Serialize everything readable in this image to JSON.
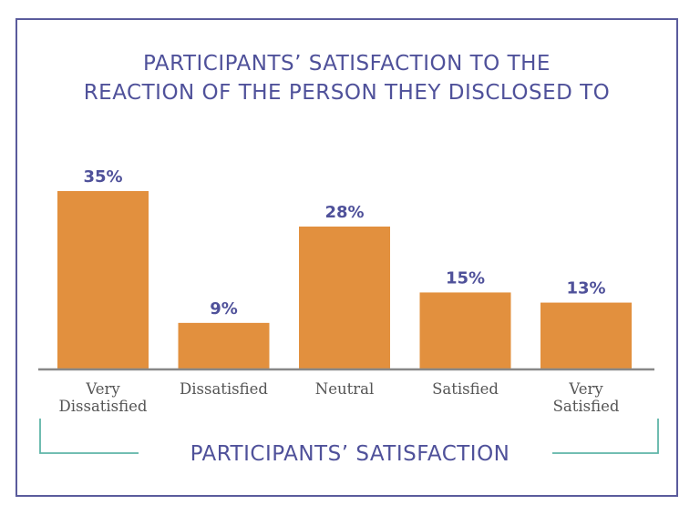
{
  "chart_data": {
    "type": "bar",
    "title_lines": [
      "PARTICIPANTS’ SATISFACTION TO THE",
      "REACTION OF THE PERSON THEY DISCLOSED TO"
    ],
    "categories": [
      [
        "Very",
        "Dissatisfied"
      ],
      [
        "Dissatisfied"
      ],
      [
        "Neutral"
      ],
      [
        "Satisfied"
      ],
      [
        "Very",
        "Satisfied"
      ]
    ],
    "values": [
      35,
      9,
      28,
      15,
      13
    ],
    "value_labels": [
      "35%",
      "9%",
      "28%",
      "15%",
      "13%"
    ],
    "xlabel": "PARTICIPANTS’ SATISFACTION",
    "ylabel": "",
    "ylim": [
      0,
      35
    ],
    "grid": false,
    "colors": {
      "bar": "#e2903e",
      "value_label": "#4f519a",
      "category_label": "#555555",
      "axis": "#888888",
      "bracket": "#5fb5a7",
      "frame": "#5a5b9c"
    }
  }
}
